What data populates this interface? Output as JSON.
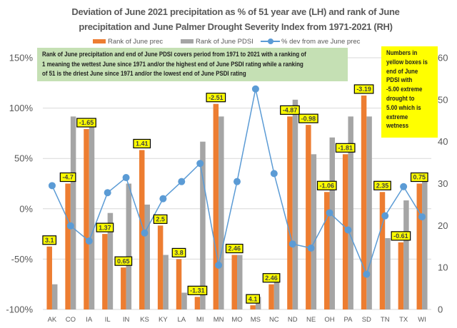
{
  "title": {
    "line1": "Deviation of June 2021 precipitation as % of 51 year ave (LH) and rank of June",
    "line2": "precipitation and  June Palmer Drought Severity Index from 1971-2021 (RH)"
  },
  "legend": [
    {
      "label": "Rank of June prec",
      "color": "#ED7D31",
      "kind": "bar"
    },
    {
      "label": "Rank of June PDSI",
      "color": "#A5A5A5",
      "kind": "bar"
    },
    {
      "label": "% dev from ave June prec",
      "color": "#5B9BD5",
      "kind": "line-marker"
    }
  ],
  "note_green": {
    "color": "#C5E0B4",
    "lines": [
      "Rank of June precipitation and end of June PDSI covers period from 1971 to 2021 with a ranking of",
      "1 meaning the wettest June since 1971 and/or the highest end of June PSDI rating while a ranking",
      "of 51 is the driest June since 1971 and/or the lowest end of June PSDI rating"
    ]
  },
  "note_yellow": {
    "color": "#FFFF00",
    "lines": [
      "Numbers in",
      "yellow boxes is",
      "end of June",
      "PDSI with",
      "-5.00 extreme",
      "drought to",
      "5.00 which is",
      "extreme",
      "wetness"
    ]
  },
  "chart_data": {
    "type": "bar",
    "title": "Deviation of June 2021 precipitation as % of 51 year ave (LH) and rank of June precipitation and June Palmer Drought Severity Index from 1971-2021 (RH)",
    "xlabel": "",
    "ylabel": "",
    "y2label": "",
    "categories": [
      "AK",
      "CO",
      "IA",
      "IL",
      "IN",
      "KS",
      "KY",
      "LA",
      "MI",
      "MN",
      "MO",
      "MS",
      "NC",
      "ND",
      "NE",
      "OH",
      "PA",
      "SD",
      "TN",
      "TX",
      "WI"
    ],
    "series": [
      {
        "name": "Rank of June prec",
        "type": "bar",
        "axis": "right",
        "color": "#ED7D31",
        "values": [
          15,
          30,
          43,
          18,
          10,
          38,
          20,
          12,
          3,
          49,
          13,
          1,
          6,
          46,
          44,
          28,
          37,
          51,
          28,
          16,
          30
        ]
      },
      {
        "name": "Rank of June PDSI",
        "type": "bar",
        "axis": "right",
        "color": "#A5A5A5",
        "values": [
          6,
          46,
          44,
          23,
          30,
          25,
          13,
          4,
          40,
          46,
          13,
          3,
          7,
          50,
          37,
          41,
          46,
          46,
          17,
          26,
          31
        ]
      },
      {
        "name": "% dev from ave June prec",
        "type": "line",
        "axis": "left",
        "color": "#5B9BD5",
        "unit": "%",
        "values": [
          23,
          -17,
          -32,
          16,
          31,
          -24,
          10,
          27,
          45,
          -56,
          27,
          119,
          35,
          -35,
          -39,
          -4,
          -21,
          -65,
          -7,
          22,
          -8
        ]
      }
    ],
    "data_labels": {
      "series": "Rank of June prec",
      "meaning": "end of June PDSI",
      "box_color": "#FFFF00",
      "values": [
        "3.1",
        "-4.7",
        "-1.65",
        "1.37",
        "0.65",
        "1.41",
        "2.5",
        "3.8",
        "-1.31",
        "-2.51",
        "2.46",
        "4.1",
        "2.46",
        "-4.87",
        "-0.98",
        "-1.06",
        "-1.81",
        "-3.19",
        "2.35",
        "-0.61",
        "0.75"
      ]
    },
    "ylim": [
      -100,
      150
    ],
    "yticks": [
      -100,
      -50,
      0,
      50,
      100,
      150
    ],
    "ytick_labels": [
      "-100%",
      "-50%",
      "0%",
      "50%",
      "100%",
      "150%"
    ],
    "y2lim": [
      0,
      60
    ],
    "y2ticks": [
      0,
      10,
      20,
      30,
      40,
      50,
      60
    ],
    "grid": true,
    "gridline_color": "#D9D9D9",
    "text_color": "#595959",
    "legend_position": "top"
  }
}
